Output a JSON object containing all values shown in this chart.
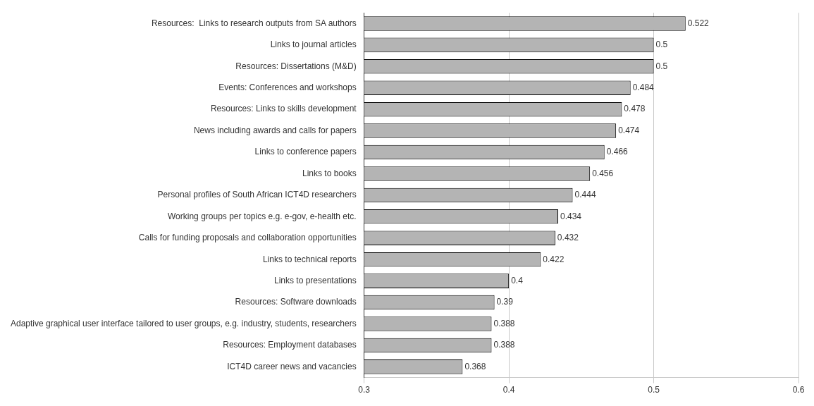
{
  "chart_data": {
    "type": "bar",
    "orientation": "horizontal",
    "categories": [
      "Resources:  Links to research outputs from SA authors",
      "Links to journal articles",
      "Resources: Dissertations (M&D)",
      "Events: Conferences and workshops",
      "Resources: Links to skills development",
      "News including awards and calls for papers",
      "Links to conference papers",
      "Links to books",
      "Personal profiles of South African ICT4D researchers",
      "Working groups per topics e.g. e-gov, e-health etc.",
      "Calls for funding proposals and collaboration opportunities",
      "Links to technical reports",
      "Links to presentations",
      "Resources: Software downloads",
      "Adaptive graphical user interface tailored to user groups, e.g. industry, students, researchers",
      "Resources: Employment databases",
      "ICT4D career news and vacancies"
    ],
    "values": [
      0.522,
      0.5,
      0.5,
      0.484,
      0.478,
      0.474,
      0.466,
      0.456,
      0.444,
      0.434,
      0.432,
      0.422,
      0.4,
      0.39,
      0.388,
      0.388,
      0.368
    ],
    "color": "#b4b4b4",
    "xlim": [
      0.3,
      0.6
    ],
    "xticks": [
      0.3,
      0.4,
      0.5,
      0.6
    ],
    "grid": "x",
    "legend": false,
    "data_labels": true
  }
}
